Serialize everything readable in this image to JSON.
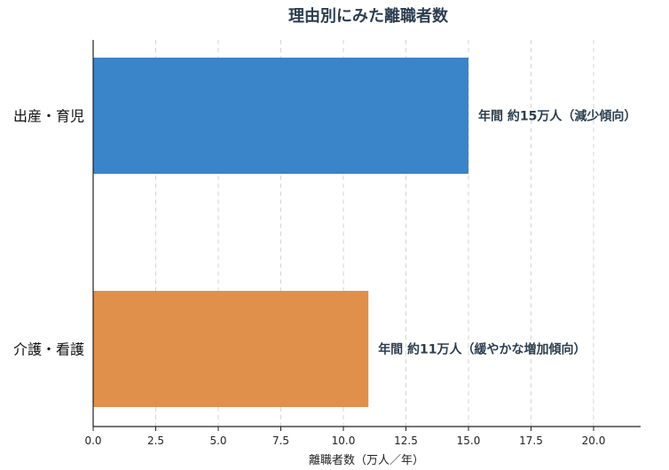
{
  "chart_data": {
    "type": "bar",
    "orientation": "horizontal",
    "title": "理由別にみた離職者数",
    "xlabel": "離職者数（万人／年）",
    "ylabel": "",
    "categories": [
      "出産・育児",
      "介護・看護"
    ],
    "values": [
      15,
      11
    ],
    "colors": [
      "#3a84c9",
      "#e0904a"
    ],
    "annotations": [
      "年間 約15万人（減少傾向）",
      "年間 約11万人（緩やかな増加傾向）"
    ],
    "xlim": [
      0,
      22
    ],
    "xticks": [
      0,
      2.5,
      5,
      7.5,
      10,
      12.5,
      15,
      17.5,
      20
    ],
    "xtick_labels": [
      "0.0",
      "2.5",
      "5.0",
      "7.5",
      "10.0",
      "12.5",
      "15.0",
      "17.5",
      "20.0"
    ],
    "grid": "x-dashed",
    "legend": "none"
  }
}
